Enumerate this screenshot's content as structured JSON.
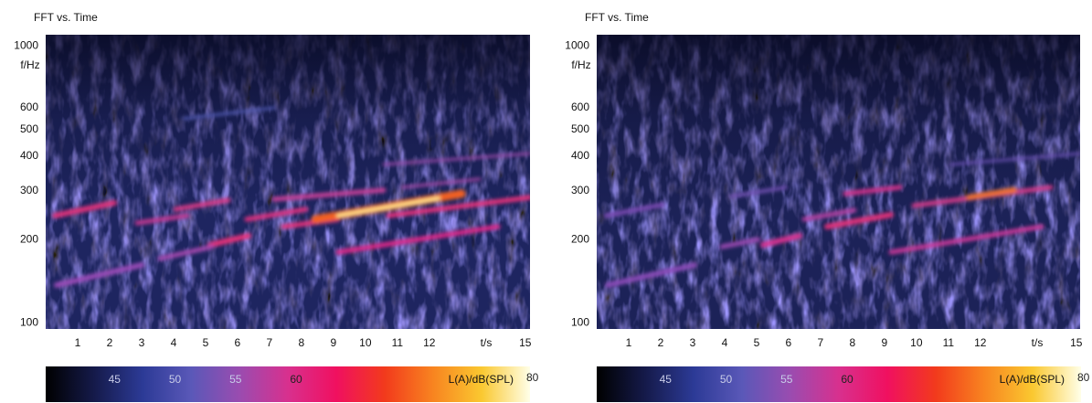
{
  "chart_data": [
    {
      "type": "spectrogram",
      "title": "FFT vs. Time",
      "x_label": "t/s",
      "y_label": "f/Hz",
      "xlim": [
        0,
        15.15
      ],
      "xticks": [
        1,
        2,
        3,
        4,
        5,
        6,
        7,
        8,
        9,
        10,
        11,
        12,
        15
      ],
      "ylim": [
        95,
        1100
      ],
      "ylog": true,
      "yticks": [
        100,
        200,
        300,
        400,
        500,
        600,
        1000
      ],
      "colorbar": {
        "label": "L(A)/dB(SPL)",
        "clim": [
          40,
          80
        ],
        "ticks": [
          45,
          50,
          55,
          60,
          80
        ],
        "colormap": [
          "#000000",
          "#151a4a",
          "#2c3a96",
          "#5a58b8",
          "#9a4cb0",
          "#d8308e",
          "#f01060",
          "#f23a1c",
          "#f88420",
          "#fac830",
          "#ffffe8"
        ]
      }
    },
    {
      "type": "spectrogram",
      "title": "FFT vs. Time",
      "x_label": "t/s",
      "y_label": "f/Hz",
      "xlim": [
        0,
        15.15
      ],
      "xticks": [
        1,
        2,
        3,
        4,
        5,
        6,
        7,
        8,
        9,
        10,
        11,
        12,
        15
      ],
      "ylim": [
        95,
        1100
      ],
      "ylog": true,
      "yticks": [
        100,
        200,
        300,
        400,
        500,
        600,
        1000
      ],
      "colorbar": {
        "label": "L(A)/dB(SPL)",
        "clim": [
          40,
          80
        ],
        "ticks": [
          45,
          50,
          55,
          60,
          80
        ],
        "colormap": [
          "#000000",
          "#151a4a",
          "#2c3a96",
          "#5a58b8",
          "#9a4cb0",
          "#d8308e",
          "#f01060",
          "#f23a1c",
          "#f88420",
          "#fac830",
          "#ffffe8"
        ]
      }
    }
  ]
}
